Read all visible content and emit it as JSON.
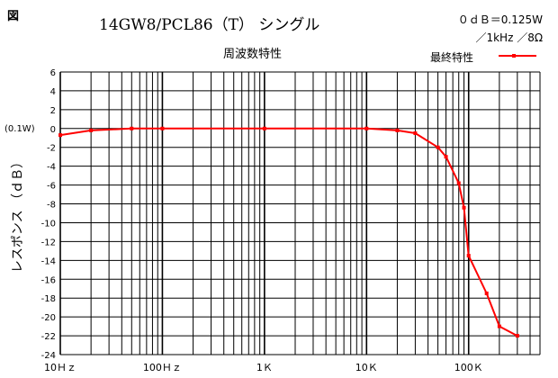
{
  "figure_label": "図",
  "chart_data": {
    "type": "line",
    "title": "14GW8/PCL86（T） シングル",
    "subtitle": "周波数特性",
    "reference_line1": "０ｄＢ＝0.125W",
    "reference_line2": "／1kHz ／8Ω",
    "ylabel": "レスポンス （ｄＢ）",
    "xlabel": "",
    "x_scale": "log",
    "xlim": [
      10,
      500000
    ],
    "ylim": [
      -24,
      6
    ],
    "grid": true,
    "legend_position": "top-right",
    "zero_annotation": "(0.1W)",
    "x_ticks": [
      {
        "value": 10,
        "label": "10Ｈｚ"
      },
      {
        "value": 100,
        "label": "100Ｈｚ"
      },
      {
        "value": 1000,
        "label": "1Ｋ"
      },
      {
        "value": 10000,
        "label": "10Ｋ"
      },
      {
        "value": 100000,
        "label": "100Ｋ"
      }
    ],
    "y_ticks": [
      6,
      4,
      2,
      0,
      -2,
      -4,
      -6,
      -8,
      -10,
      -12,
      -14,
      -16,
      -18,
      -20,
      -22,
      -24
    ],
    "series": [
      {
        "name": "最終特性",
        "color": "#ff0000",
        "x": [
          10,
          20,
          50,
          100,
          1000,
          10000,
          20000,
          30000,
          50000,
          60000,
          80000,
          90000,
          100000,
          150000,
          200000,
          300000
        ],
        "y": [
          -0.7,
          -0.2,
          0,
          0,
          0,
          0,
          -0.2,
          -0.5,
          -2.0,
          -3.0,
          -5.8,
          -8.4,
          -13.5,
          -17.5,
          -21.0,
          -22.0
        ]
      }
    ]
  }
}
